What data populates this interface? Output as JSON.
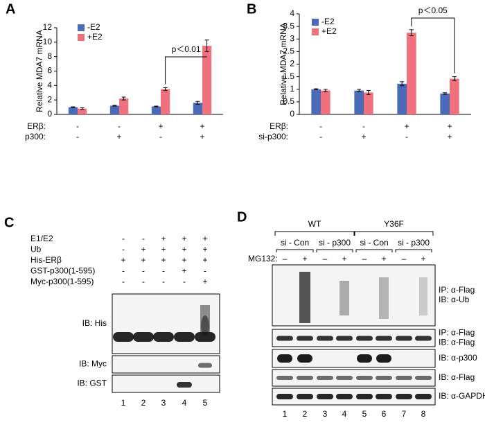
{
  "chart_data": [
    {
      "type": "bar",
      "panel_label": "A",
      "y_label": "Relative  MDA7  mRNA",
      "categories": [
        null,
        null,
        null,
        null
      ],
      "series": [
        {
          "name": "-E2",
          "color": "#4a6cb8",
          "values": [
            1.0,
            1.2,
            1.1,
            1.6
          ],
          "errors": [
            0.05,
            0.05,
            0.05,
            0.2
          ]
        },
        {
          "name": "+E2",
          "color": "#f0717d",
          "values": [
            0.8,
            2.2,
            3.5,
            9.5
          ],
          "errors": [
            0.12,
            0.2,
            0.2,
            0.8
          ]
        }
      ],
      "ylim": [
        0,
        12
      ],
      "yticks": [
        0,
        2,
        4,
        6,
        8,
        10,
        12
      ],
      "annotation": "p＜0.01",
      "conditions": [
        {
          "label": "ERβ:",
          "signs": [
            "-",
            "-",
            "+",
            "+"
          ]
        },
        {
          "label": "p300:",
          "signs": [
            "-",
            "+",
            "-",
            "+"
          ]
        }
      ]
    },
    {
      "type": "bar",
      "panel_label": "B",
      "y_label": "Relative  MDA7  mRNA",
      "categories": [
        null,
        null,
        null,
        null
      ],
      "series": [
        {
          "name": "-E2",
          "color": "#4a6cb8",
          "values": [
            1.0,
            0.95,
            1.22,
            0.83
          ],
          "errors": [
            0.02,
            0.05,
            0.08,
            0.03
          ]
        },
        {
          "name": "+E2",
          "color": "#f0717d",
          "values": [
            0.95,
            0.87,
            3.25,
            1.42
          ],
          "errors": [
            0.05,
            0.08,
            0.12,
            0.08
          ]
        }
      ],
      "ylim": [
        0,
        4
      ],
      "yticks": [
        0,
        0.5,
        1,
        1.5,
        2,
        2.5,
        3,
        3.5,
        4
      ],
      "annotation": "p＜0.05",
      "conditions": [
        {
          "label": "ERβ:",
          "signs": [
            "-",
            "-",
            "+",
            "+"
          ]
        },
        {
          "label": "si-p300:",
          "signs": [
            "-",
            "+",
            "-",
            "+"
          ]
        }
      ]
    }
  ],
  "blot_c": {
    "panel_label": "C",
    "conditions": [
      {
        "label": "E1/E2",
        "signs": [
          "-",
          "-",
          "+",
          "+",
          "+"
        ]
      },
      {
        "label": "Ub",
        "signs": [
          "-",
          "+",
          "+",
          "+",
          "+"
        ]
      },
      {
        "label": "His-ERβ",
        "signs": [
          "+",
          "+",
          "+",
          "+",
          "+"
        ]
      },
      {
        "label": "GST-p300(1-595)",
        "signs": [
          "-",
          "-",
          "-",
          "+",
          "-"
        ]
      },
      {
        "label": "Myc-p300(1-595)",
        "signs": [
          "-",
          "-",
          "-",
          "-",
          "+"
        ]
      }
    ],
    "blots": [
      [
        "IB: His"
      ],
      [
        "IB: Myc"
      ],
      [
        "IB: GST"
      ]
    ],
    "lanes": [
      "1",
      "2",
      "3",
      "4",
      "5"
    ]
  },
  "blot_d": {
    "panel_label": "D",
    "groups": [
      "WT",
      "Y36F"
    ],
    "subgroups": [
      "si - Con",
      "si - p300",
      "si - Con",
      "si - p300"
    ],
    "treatment": {
      "label": "MG132:",
      "signs": [
        "–",
        "+",
        "–",
        "+",
        "–",
        "+",
        "–",
        "+"
      ]
    },
    "blots": [
      [
        "IP: α-Flag",
        "IB: α-Ub"
      ],
      [
        "IP: α-Flag",
        "IB: α-Flag"
      ],
      [
        "IB: α-p300"
      ],
      [
        "IB: α-Flag"
      ],
      [
        "IB: α-GAPDH"
      ]
    ],
    "lanes": [
      "1",
      "2",
      "3",
      "4",
      "5",
      "6",
      "7",
      "8"
    ]
  }
}
